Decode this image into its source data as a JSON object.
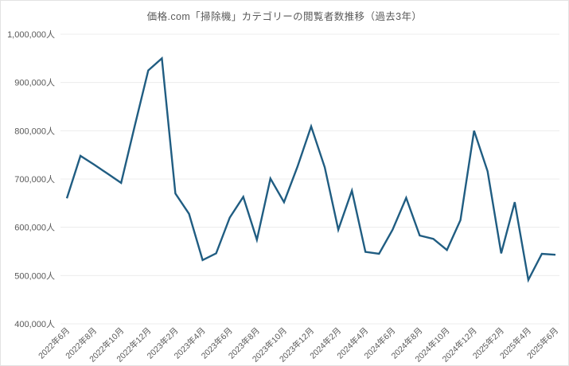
{
  "chart_data": {
    "type": "line",
    "title": "価格.com「掃除機」カテゴリーの閲覧者数推移（過去3年）",
    "xlabel": "",
    "ylabel": "",
    "x_start": "2022年6月",
    "x_interval": "monthly",
    "x_tick_labels": [
      "2022年6月",
      "2022年8月",
      "2022年10月",
      "2022年12月",
      "2023年2月",
      "2023年4月",
      "2023年6月",
      "2023年8月",
      "2023年10月",
      "2023年12月",
      "2024年2月",
      "2024年4月",
      "2024年6月",
      "2024年8月",
      "2024年10月",
      "2024年12月",
      "2025年2月",
      "2025年4月",
      "2025年6月"
    ],
    "x_tick_every": 2,
    "y_tick_values": [
      400000,
      500000,
      600000,
      700000,
      800000,
      900000,
      1000000
    ],
    "y_tick_labels": [
      "400,000人",
      "500,000人",
      "600,000人",
      "700,000人",
      "800,000人",
      "900,000人",
      "1,000,000人"
    ],
    "ylim": [
      400000,
      1000000
    ],
    "grid": "horizontal-only",
    "legend": "none",
    "colors": {
      "line": "#205d82",
      "gridline": "#ececec",
      "text": "#595959",
      "background": "#ffffff"
    },
    "series": [
      {
        "name": "閲覧者数",
        "unit": "人",
        "months": [
          "2022年6月",
          "2022年7月",
          "2022年8月",
          "2022年9月",
          "2022年10月",
          "2022年11月",
          "2022年12月",
          "2023年1月",
          "2023年2月",
          "2023年3月",
          "2023年4月",
          "2023年5月",
          "2023年6月",
          "2023年7月",
          "2023年8月",
          "2023年9月",
          "2023年10月",
          "2023年11月",
          "2023年12月",
          "2024年1月",
          "2024年2月",
          "2024年3月",
          "2024年4月",
          "2024年5月",
          "2024年6月",
          "2024年7月",
          "2024年8月",
          "2024年9月",
          "2024年10月",
          "2024年11月",
          "2024年12月",
          "2025年1月",
          "2025年2月",
          "2025年3月",
          "2025年4月",
          "2025年5月",
          "2025年6月"
        ],
        "values": [
          660000,
          748000,
          730000,
          711000,
          692000,
          810000,
          925000,
          950000,
          670000,
          628000,
          532000,
          546000,
          620000,
          663000,
          574000,
          701000,
          652000,
          726000,
          809000,
          724000,
          595000,
          676000,
          549000,
          545000,
          595000,
          661000,
          583000,
          576000,
          553000,
          615000,
          800000,
          716000,
          546000,
          652000,
          491000,
          545000,
          543000
        ]
      }
    ]
  }
}
